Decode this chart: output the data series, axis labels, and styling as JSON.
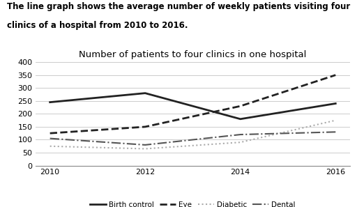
{
  "title": "Number of patients to four clinics in one hospital",
  "description_line1": "The line graph shows the average number of weekly patients visiting four",
  "description_line2": "clinics of a hospital from 2010 to 2016.",
  "years": [
    2010,
    2012,
    2014,
    2016
  ],
  "series": {
    "Birth control": [
      245,
      280,
      180,
      240
    ],
    "Eye": [
      125,
      150,
      230,
      350
    ],
    "Diabetic": [
      75,
      65,
      90,
      175
    ],
    "Dental": [
      105,
      80,
      120,
      130
    ]
  },
  "styles": {
    "Birth control": {
      "color": "#222222",
      "linestyle": "-",
      "linewidth": 2.0
    },
    "Eye": {
      "color": "#222222",
      "linestyle": "--",
      "linewidth": 2.0
    },
    "Diabetic": {
      "color": "#aaaaaa",
      "linestyle": ":",
      "linewidth": 1.5
    },
    "Dental": {
      "color": "#555555",
      "linestyle": "-.",
      "linewidth": 1.5
    }
  },
  "ylim": [
    0,
    400
  ],
  "yticks": [
    0,
    50,
    100,
    150,
    200,
    250,
    300,
    350,
    400
  ],
  "xticks": [
    2010,
    2012,
    2014,
    2016
  ],
  "background_color": "#ffffff",
  "grid_color": "#cccccc",
  "description_fontsize": 8.5,
  "title_fontsize": 9.5,
  "legend_fontsize": 7.5,
  "tick_fontsize": 8
}
